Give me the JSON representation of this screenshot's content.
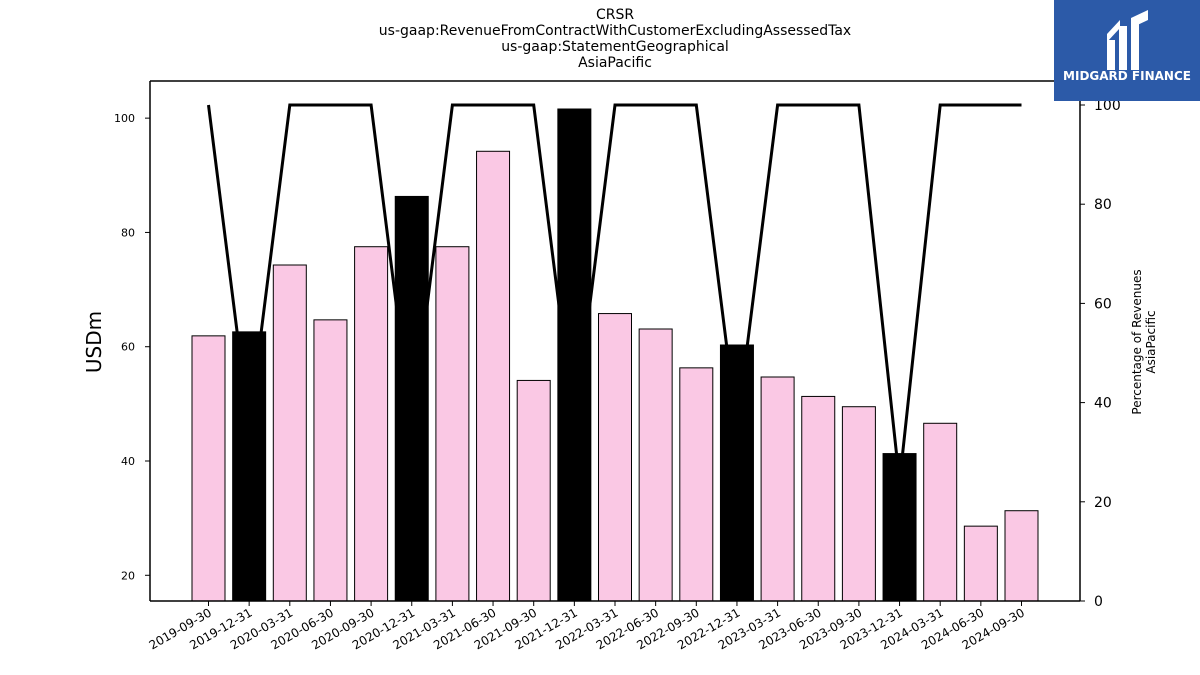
{
  "logo_text": "MIDGARD FINANCE",
  "colors": {
    "bar_normal": "#fac8e4",
    "bar_highlight": "#000000",
    "line": "#000000"
  },
  "chart_data": {
    "type": "bar",
    "title": [
      "CRSR",
      "us-gaap:RevenueFromContractWithCustomerExcludingAssessedTax",
      "us-gaap:StatementGeographical",
      "AsiaPacific"
    ],
    "ylabel": "USDm",
    "y2label": [
      "Percentage of Revenues",
      "AsiaPacific"
    ],
    "ylim": [
      15.5,
      106.5
    ],
    "y2lim": [
      0,
      100
    ],
    "yticks": [
      20,
      40,
      60,
      80,
      100
    ],
    "y2ticks": [
      0,
      20,
      40,
      60,
      80,
      100
    ],
    "categories": [
      "2019-09-30",
      "2019-12-31",
      "2020-03-31",
      "2020-06-30",
      "2020-09-30",
      "2020-12-31",
      "2021-03-31",
      "2021-06-30",
      "2021-09-30",
      "2021-12-31",
      "2022-03-31",
      "2022-06-30",
      "2022-09-30",
      "2022-12-31",
      "2023-03-31",
      "2023-06-30",
      "2023-09-30",
      "2023-12-31",
      "2024-03-31",
      "2024-06-30",
      "2024-09-30"
    ],
    "values": [
      61.9,
      62.6,
      74.3,
      64.7,
      77.5,
      86.3,
      77.5,
      94.2,
      54.1,
      101.6,
      65.8,
      63.1,
      56.3,
      60.3,
      54.7,
      51.3,
      49.5,
      41.3,
      46.6,
      28.6,
      31.3
    ],
    "highlight": [
      false,
      true,
      false,
      false,
      false,
      true,
      false,
      false,
      false,
      true,
      false,
      false,
      false,
      true,
      false,
      false,
      false,
      true,
      false,
      false,
      false
    ],
    "line_values": [
      100,
      35,
      100,
      100,
      100,
      35,
      100,
      100,
      100,
      35,
      100,
      100,
      100,
      35,
      100,
      100,
      100,
      24,
      100,
      100,
      100
    ],
    "grid": false
  }
}
